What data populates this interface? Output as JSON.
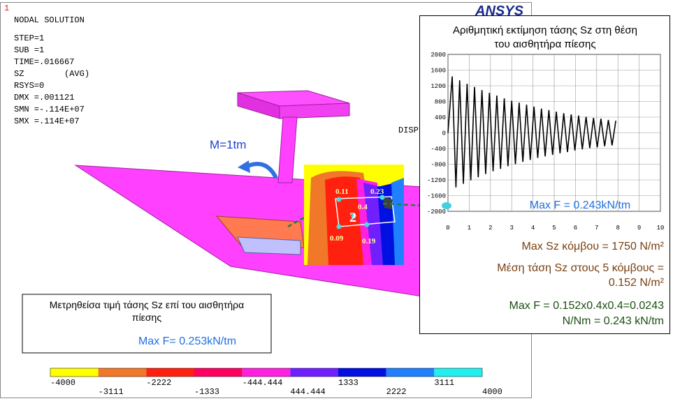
{
  "window": {
    "number": "1",
    "brand": "ANSYS"
  },
  "solution_info": [
    "NODAL SOLUTION",
    "STEP=1",
    "SUB =1",
    "TIME=.016667",
    "SZ        (AVG)",
    "RSYS=0",
    "DMX =.001121",
    "SMN =-.114E+07",
    "SMX =.114E+07"
  ],
  "disp_label": "DISP",
  "moment_label": "M=1tm",
  "sensor": {
    "node_labels": [
      "0.11",
      "0.23",
      "0.4",
      "0.09",
      "0.19"
    ],
    "sensor_number": "2"
  },
  "measured_box": {
    "lines": [
      "Μετρηθείσα τιμή τάσης Sz επί του αισθητήρα",
      "πίεσης"
    ],
    "result": "Max F= 0.253kN/tm"
  },
  "color_legend": {
    "labels": [
      "-4000",
      "-3111",
      "-2222",
      "-1333",
      "-444.444",
      "444.444",
      "1333",
      "2222",
      "3111",
      "4000"
    ],
    "colors": [
      "#ffff00",
      "#f07828",
      "#ff2010",
      "#ff0060",
      "#ff20e0",
      "#7020ff",
      "#0010e0",
      "#2080ff",
      "#20f0f0"
    ]
  },
  "numeric_panel": {
    "max_f": "Max F = 0.243kN/tm",
    "node_max": "Max Sz κόμβου = 1750 N/m²",
    "mean_lines": [
      "Μέση τάση Sz στους 5 κόμβους =",
      "0.152 N/m²"
    ],
    "force_lines": [
      "Max F = 0.152x0.4x0.4=0.0243",
      "N/Nm = 0.243 kN/tm"
    ]
  },
  "chart_data": {
    "type": "line",
    "title": [
      "Αριθμητική εκτίμηση τάσης Sz στη θέση",
      "του αισθητήρα πίεσης"
    ],
    "x": [
      0,
      0.2,
      0.375,
      0.55,
      0.725,
      0.9,
      1.075,
      1.25,
      1.425,
      1.6,
      1.775,
      1.95,
      2.125,
      2.3,
      2.475,
      2.65,
      2.825,
      3.0,
      3.175,
      3.35,
      3.525,
      3.7,
      3.875,
      4.05,
      4.225,
      4.4,
      4.575,
      4.75,
      4.925,
      5.1,
      5.275,
      5.45,
      5.625,
      5.8,
      5.975,
      6.15,
      6.325,
      6.5,
      6.675,
      6.85,
      7.025,
      7.2,
      7.375,
      7.55,
      7.725,
      7.9
    ],
    "series": [
      {
        "color": "#000000",
        "values": [
          0,
          1440,
          -1390,
          1340,
          -1300,
          1250,
          -1210,
          1170,
          -1130,
          1090,
          -1050,
          1020,
          -980,
          950,
          -920,
          880,
          -850,
          820,
          -800,
          770,
          -740,
          720,
          -690,
          670,
          -640,
          620,
          -600,
          580,
          -560,
          540,
          -520,
          500,
          -490,
          470,
          -450,
          440,
          -420,
          410,
          -390,
          380,
          -370,
          360,
          -340,
          330,
          -320,
          310
        ]
      }
    ],
    "xlim": [
      0,
      10
    ],
    "ylim": [
      -2000,
      2000
    ],
    "xticks": [
      0,
      1,
      2,
      3,
      4,
      5,
      6,
      7,
      8,
      9,
      10
    ],
    "yticks": [
      -2000,
      -1600,
      -1200,
      -800,
      -400,
      0,
      400,
      800,
      1200,
      1600,
      2000
    ],
    "grid": true
  }
}
